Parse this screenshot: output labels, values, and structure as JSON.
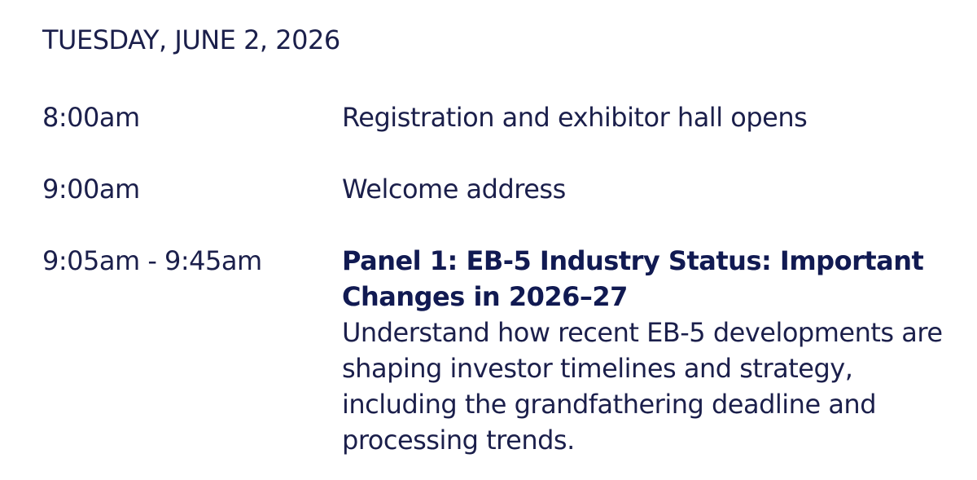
{
  "header": {
    "date": "TUESDAY, JUNE 2, 2026"
  },
  "schedule": [
    {
      "time": "8:00am",
      "title": "Registration and exhibitor hall opens"
    },
    {
      "time": "9:00am",
      "title": "Welcome address"
    },
    {
      "time": "9:05am - 9:45am",
      "panel": "Panel 1: EB-5 Industry Status: Important Changes in 2026–27",
      "description": "Understand how recent EB-5 developments are shaping investor timelines and strategy, including the grandfathering deadline and processing trends."
    }
  ]
}
